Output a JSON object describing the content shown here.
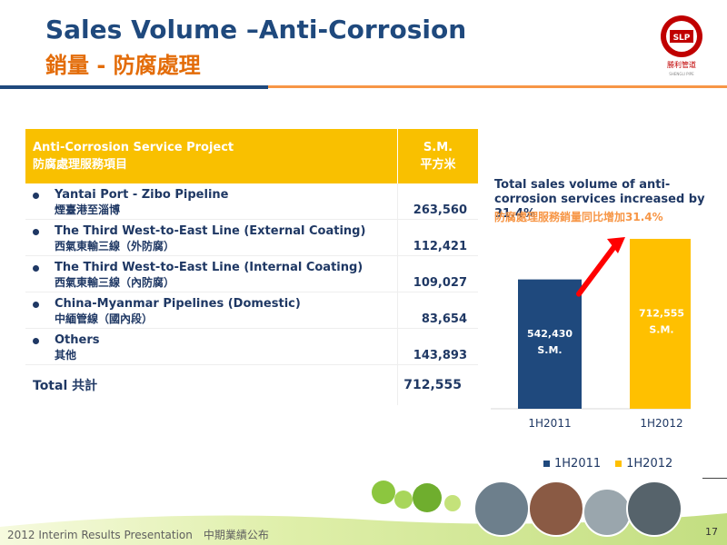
{
  "title_en": "Sales Volume –Anti-Corrosion",
  "title_zh": "銷量 - 防腐處理",
  "logo_text": "SLP",
  "logo_caption": "勝利管道",
  "logo_caption_en": "SHENGLI PIPE",
  "table": {
    "header_project_en": "Anti-Corrosion Service Project",
    "header_project_zh": "防腐處理服務項目",
    "header_unit_en": "S.M.",
    "header_unit_zh": "平方米",
    "rows": [
      {
        "en": "Yantai Port - Zibo Pipeline",
        "zh": "煙臺港至淄博",
        "value": "263,560"
      },
      {
        "en": "The Third West-to-East Line (External Coating)",
        "zh": "西氣東輸三線（外防腐）",
        "value": "112,421"
      },
      {
        "en": "The Third West-to-East Line (Internal Coating)",
        "zh": "西氣東輸三線（內防腐）",
        "value": "109,027"
      },
      {
        "en": "China-Myanmar Pipelines (Domestic)",
        "zh": "中緬管線（國內段）",
        "value": "83,654"
      },
      {
        "en": "Others",
        "zh": "其他",
        "value": "143,893"
      }
    ],
    "total_label": "Total 共計",
    "total_value": "712,555"
  },
  "chart_title_en": "Total sales volume of anti-corrosion services increased by 31.4%",
  "chart_title_zh": "防腐處理服務銷量同比增加31.4%",
  "chart_data": {
    "type": "bar",
    "categories": [
      "1H2011",
      "1H2012"
    ],
    "values": [
      542430,
      712555
    ],
    "data_labels": [
      [
        "542,430",
        "S.M."
      ],
      [
        "712,555",
        "S.M."
      ]
    ],
    "colors": [
      "#1f497d",
      "#ffc000"
    ],
    "legend": [
      "1H2011",
      "1H2012"
    ],
    "legend_position": "bottom",
    "ylim": [
      0,
      800000
    ],
    "growth_arrow": true,
    "grid": false
  },
  "footer_text": "2012 Interim Results Presentation　中期業績公布",
  "page_number": "17"
}
